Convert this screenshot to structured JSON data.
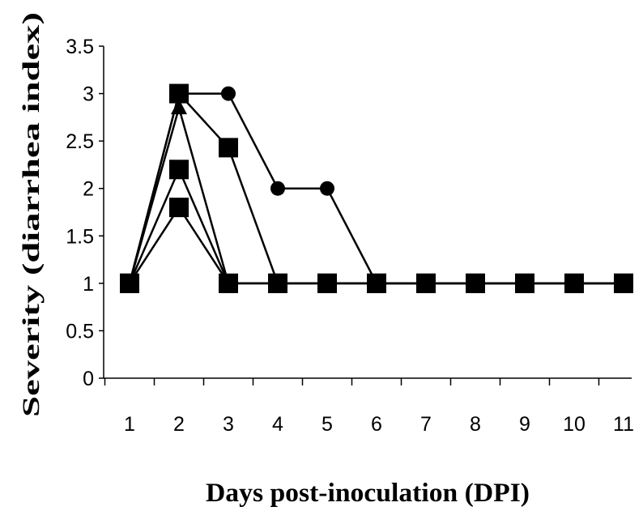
{
  "chart_data": {
    "type": "line",
    "title": "",
    "xlabel": "Days post-inoculation (DPI)",
    "ylabel": "Severity (diarrhea index)",
    "categories": [
      "1",
      "2",
      "3",
      "4",
      "5",
      "6",
      "7",
      "8",
      "9",
      "10",
      "11"
    ],
    "ylim": [
      0,
      3.5
    ],
    "yticks": [
      "0",
      "0.5",
      "1",
      "1.5",
      "2",
      "2.5",
      "3",
      "3.5"
    ],
    "grid": false,
    "legend": "none",
    "series": [
      {
        "marker": "circle",
        "values": [
          1,
          3,
          3,
          2,
          2,
          1,
          1,
          1,
          1,
          1,
          1
        ]
      },
      {
        "marker": "square",
        "values": [
          1,
          3,
          2.43,
          1,
          1,
          1,
          1,
          1,
          1,
          1,
          1
        ]
      },
      {
        "marker": "triangle",
        "values": [
          1,
          2.85,
          1,
          1,
          1,
          1,
          1,
          1,
          1,
          1,
          1
        ]
      },
      {
        "marker": "square",
        "values": [
          1,
          2.2,
          1,
          1,
          1,
          1,
          1,
          1,
          1,
          1,
          1
        ]
      },
      {
        "marker": "square",
        "values": [
          1,
          1.8,
          1,
          1,
          1,
          1,
          1,
          1,
          1,
          1,
          1
        ]
      }
    ]
  }
}
